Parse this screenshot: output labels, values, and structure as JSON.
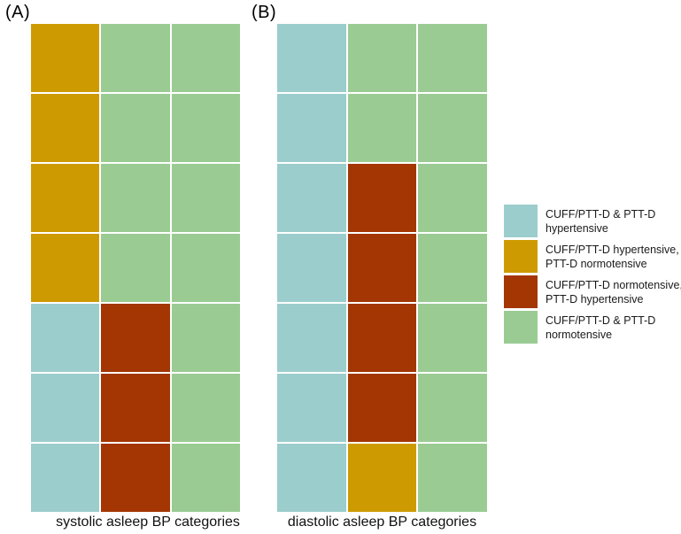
{
  "chart_data": {
    "type": "heatmap",
    "title": "",
    "description": "Two categorical concordance heatmaps (7 rows x 3 columns each) comparing hypertension classification by CUFF/PTT-D and PTT-D during sleep; white gaps between cells; categorical color legend on the right.",
    "grid": "white 2px gaps between cells, no axes or tick labels",
    "legend_position": "right",
    "category_colors": {
      "HH": "#9BCDCC",
      "HN": "#CE9A02",
      "NH": "#A33603",
      "NN": "#9ACB93"
    },
    "category_meanings": {
      "HH": "CUFF/PTT-D & PTT-D hypertensive",
      "HN": "CUFF/PTT-D hypertensive, PTT-D normotensive",
      "NH": "CUFF/PTT-D normotensive, PTT-D hypertensive",
      "NN": "CUFF/PTT-D & PTT-D normotensive"
    },
    "panels": [
      {
        "id": "A",
        "label": "(A)",
        "xlabel": "systolic asleep BP categories",
        "rows": 7,
        "cols": 3,
        "cells": [
          [
            "HN",
            "NN",
            "NN"
          ],
          [
            "HN",
            "NN",
            "NN"
          ],
          [
            "HN",
            "NN",
            "NN"
          ],
          [
            "HN",
            "NN",
            "NN"
          ],
          [
            "HH",
            "NH",
            "NN"
          ],
          [
            "HH",
            "NH",
            "NN"
          ],
          [
            "HH",
            "NH",
            "NN"
          ]
        ]
      },
      {
        "id": "B",
        "label": "(B)",
        "xlabel": "diastolic asleep BP categories",
        "rows": 7,
        "cols": 3,
        "cells": [
          [
            "HH",
            "NN",
            "NN"
          ],
          [
            "HH",
            "NN",
            "NN"
          ],
          [
            "HH",
            "NH",
            "NN"
          ],
          [
            "HH",
            "NH",
            "NN"
          ],
          [
            "HH",
            "NH",
            "NN"
          ],
          [
            "HH",
            "NH",
            "NN"
          ],
          [
            "HH",
            "HN",
            "NN"
          ]
        ]
      }
    ],
    "legend": {
      "items": [
        {
          "key": "HH",
          "color": "#9BCDCC",
          "lines": [
            "CUFF/PTT-D & PTT-D",
            "hypertensive"
          ]
        },
        {
          "key": "HN",
          "color": "#CE9A02",
          "lines": [
            "CUFF/PTT-D hypertensive,",
            "PTT-D normotensive"
          ]
        },
        {
          "key": "NH",
          "color": "#A33603",
          "lines": [
            "CUFF/PTT-D normotensive,",
            "PTT-D hypertensive"
          ]
        },
        {
          "key": "NN",
          "color": "#9ACB93",
          "lines": [
            "CUFF/PTT-D & PTT-D",
            "normotensive"
          ]
        }
      ]
    },
    "colors": {
      "background": "#ffffff",
      "gap_lines": "#ffffff",
      "text": "#111111"
    }
  }
}
